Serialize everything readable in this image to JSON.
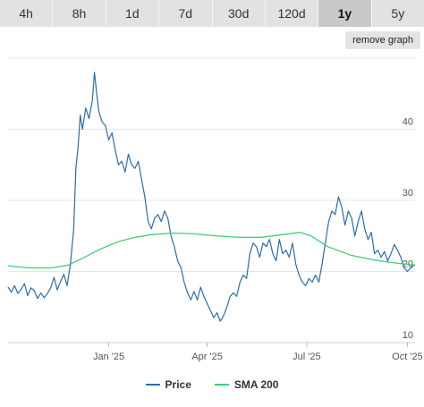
{
  "ranges": {
    "tabs": [
      "4h",
      "8h",
      "1d",
      "7d",
      "30d",
      "120d",
      "1y",
      "5y"
    ],
    "active": "1y"
  },
  "remove_graph_label": "remove graph",
  "colors": {
    "price": "#2b6ea8",
    "sma": "#3fcf7a",
    "grid": "#e6e6e6",
    "axis_text": "#555555"
  },
  "chart_data": {
    "type": "line",
    "xlabel": "",
    "ylabel": "",
    "x_range": [
      "2024-10-01",
      "2025-10-08"
    ],
    "ylim": [
      10,
      50
    ],
    "y_ticks": [
      10,
      20,
      30,
      40
    ],
    "x_ticks": [
      {
        "date": "2025-01-01",
        "label": "Jan '25"
      },
      {
        "date": "2025-04-01",
        "label": "Apr '25"
      },
      {
        "date": "2025-07-01",
        "label": "Jul '25"
      },
      {
        "date": "2025-10-01",
        "label": "Oct '25"
      }
    ],
    "grid": "horizontal",
    "legend": "bottom-center",
    "series": [
      {
        "name": "Price",
        "key": "price",
        "points": [
          [
            "2024-10-01",
            17.8
          ],
          [
            "2024-10-04",
            17.1
          ],
          [
            "2024-10-07",
            18.0
          ],
          [
            "2024-10-10",
            16.9
          ],
          [
            "2024-10-13",
            17.5
          ],
          [
            "2024-10-16",
            18.3
          ],
          [
            "2024-10-19",
            16.6
          ],
          [
            "2024-10-22",
            17.7
          ],
          [
            "2024-10-25",
            17.3
          ],
          [
            "2024-10-28",
            16.2
          ],
          [
            "2024-10-31",
            17.0
          ],
          [
            "2024-11-03",
            16.3
          ],
          [
            "2024-11-06",
            16.9
          ],
          [
            "2024-11-09",
            17.7
          ],
          [
            "2024-11-12",
            19.2
          ],
          [
            "2024-11-15",
            17.4
          ],
          [
            "2024-11-18",
            18.6
          ],
          [
            "2024-11-21",
            19.6
          ],
          [
            "2024-11-24",
            18.0
          ],
          [
            "2024-11-27",
            21.0
          ],
          [
            "2024-11-30",
            26.0
          ],
          [
            "2024-12-02",
            34.5
          ],
          [
            "2024-12-04",
            37.5
          ],
          [
            "2024-12-06",
            42.0
          ],
          [
            "2024-12-08",
            40.0
          ],
          [
            "2024-12-11",
            43.0
          ],
          [
            "2024-12-14",
            41.5
          ],
          [
            "2024-12-17",
            44.0
          ],
          [
            "2024-12-19",
            48.0
          ],
          [
            "2024-12-21",
            45.0
          ],
          [
            "2024-12-23",
            42.5
          ],
          [
            "2024-12-26",
            41.0
          ],
          [
            "2024-12-29",
            40.5
          ],
          [
            "2025-01-01",
            38.5
          ],
          [
            "2025-01-04",
            39.5
          ],
          [
            "2025-01-07",
            37.0
          ],
          [
            "2025-01-10",
            35.0
          ],
          [
            "2025-01-13",
            35.5
          ],
          [
            "2025-01-16",
            34.0
          ],
          [
            "2025-01-19",
            36.5
          ],
          [
            "2025-01-22",
            35.0
          ],
          [
            "2025-01-25",
            34.5
          ],
          [
            "2025-01-28",
            35.5
          ],
          [
            "2025-01-31",
            33.0
          ],
          [
            "2025-02-03",
            30.5
          ],
          [
            "2025-02-06",
            27.0
          ],
          [
            "2025-02-09",
            26.0
          ],
          [
            "2025-02-12",
            27.5
          ],
          [
            "2025-02-15",
            28.0
          ],
          [
            "2025-02-18",
            27.0
          ],
          [
            "2025-02-21",
            28.5
          ],
          [
            "2025-02-24",
            27.5
          ],
          [
            "2025-02-27",
            25.0
          ],
          [
            "2025-03-02",
            23.5
          ],
          [
            "2025-03-05",
            21.5
          ],
          [
            "2025-03-08",
            20.5
          ],
          [
            "2025-03-11",
            18.5
          ],
          [
            "2025-03-14",
            17.0
          ],
          [
            "2025-03-17",
            16.0
          ],
          [
            "2025-03-20",
            17.2
          ],
          [
            "2025-03-23",
            16.0
          ],
          [
            "2025-03-26",
            17.8
          ],
          [
            "2025-03-29",
            16.5
          ],
          [
            "2025-04-01",
            15.5
          ],
          [
            "2025-04-04",
            14.5
          ],
          [
            "2025-04-07",
            13.5
          ],
          [
            "2025-04-10",
            14.2
          ],
          [
            "2025-04-13",
            13.0
          ],
          [
            "2025-04-16",
            13.8
          ],
          [
            "2025-04-19",
            15.0
          ],
          [
            "2025-04-22",
            16.5
          ],
          [
            "2025-04-25",
            17.0
          ],
          [
            "2025-04-28",
            16.5
          ],
          [
            "2025-05-01",
            18.5
          ],
          [
            "2025-05-04",
            19.5
          ],
          [
            "2025-05-07",
            19.0
          ],
          [
            "2025-05-10",
            22.5
          ],
          [
            "2025-05-13",
            24.0
          ],
          [
            "2025-05-16",
            23.5
          ],
          [
            "2025-05-19",
            22.0
          ],
          [
            "2025-05-22",
            24.0
          ],
          [
            "2025-05-25",
            23.5
          ],
          [
            "2025-05-28",
            24.5
          ],
          [
            "2025-05-31",
            22.5
          ],
          [
            "2025-06-03",
            21.5
          ],
          [
            "2025-06-06",
            24.5
          ],
          [
            "2025-06-09",
            22.5
          ],
          [
            "2025-06-12",
            23.0
          ],
          [
            "2025-06-15",
            22.0
          ],
          [
            "2025-06-18",
            24.0
          ],
          [
            "2025-06-21",
            21.0
          ],
          [
            "2025-06-24",
            19.5
          ],
          [
            "2025-06-27",
            18.5
          ],
          [
            "2025-06-30",
            18.0
          ],
          [
            "2025-07-03",
            19.0
          ],
          [
            "2025-07-06",
            18.5
          ],
          [
            "2025-07-09",
            19.5
          ],
          [
            "2025-07-12",
            18.5
          ],
          [
            "2025-07-15",
            21.0
          ],
          [
            "2025-07-18",
            24.0
          ],
          [
            "2025-07-21",
            27.0
          ],
          [
            "2025-07-24",
            28.5
          ],
          [
            "2025-07-27",
            28.0
          ],
          [
            "2025-07-30",
            30.5
          ],
          [
            "2025-08-02",
            29.0
          ],
          [
            "2025-08-05",
            26.5
          ],
          [
            "2025-08-08",
            28.5
          ],
          [
            "2025-08-11",
            27.5
          ],
          [
            "2025-08-14",
            25.0
          ],
          [
            "2025-08-17",
            27.0
          ],
          [
            "2025-08-20",
            28.5
          ],
          [
            "2025-08-23",
            26.0
          ],
          [
            "2025-08-26",
            24.5
          ],
          [
            "2025-08-29",
            25.5
          ],
          [
            "2025-09-01",
            22.5
          ],
          [
            "2025-09-04",
            23.0
          ],
          [
            "2025-09-07",
            22.0
          ],
          [
            "2025-09-10",
            22.8
          ],
          [
            "2025-09-13",
            21.5
          ],
          [
            "2025-09-16",
            22.5
          ],
          [
            "2025-09-19",
            23.8
          ],
          [
            "2025-09-22",
            23.0
          ],
          [
            "2025-09-25",
            22.0
          ],
          [
            "2025-09-28",
            20.5
          ],
          [
            "2025-10-01",
            20.0
          ],
          [
            "2025-10-04",
            20.5
          ],
          [
            "2025-10-08",
            21.0
          ]
        ]
      },
      {
        "name": "SMA 200",
        "key": "sma",
        "points": [
          [
            "2024-10-01",
            20.8
          ],
          [
            "2024-10-20",
            20.5
          ],
          [
            "2024-11-10",
            20.5
          ],
          [
            "2024-11-25",
            20.9
          ],
          [
            "2024-12-10",
            22.0
          ],
          [
            "2024-12-25",
            23.2
          ],
          [
            "2025-01-10",
            24.2
          ],
          [
            "2025-01-25",
            24.8
          ],
          [
            "2025-02-10",
            25.2
          ],
          [
            "2025-03-01",
            25.4
          ],
          [
            "2025-03-20",
            25.3
          ],
          [
            "2025-04-10",
            25.0
          ],
          [
            "2025-05-01",
            24.8
          ],
          [
            "2025-05-20",
            24.8
          ],
          [
            "2025-06-10",
            25.2
          ],
          [
            "2025-06-25",
            25.5
          ],
          [
            "2025-07-05",
            25.0
          ],
          [
            "2025-07-20",
            23.5
          ],
          [
            "2025-08-10",
            22.3
          ],
          [
            "2025-09-01",
            21.6
          ],
          [
            "2025-09-20",
            21.2
          ],
          [
            "2025-10-08",
            20.9
          ]
        ]
      }
    ]
  }
}
